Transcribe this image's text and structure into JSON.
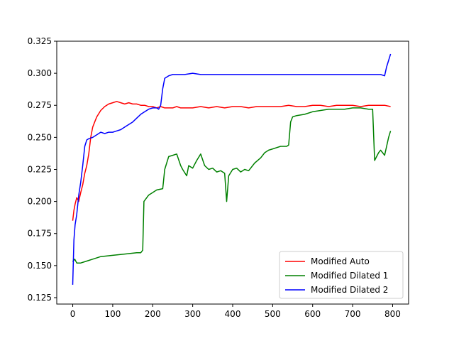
{
  "chart_data": {
    "type": "line",
    "title": "",
    "xlabel": "",
    "ylabel": "",
    "xlim": [
      -40,
      840
    ],
    "ylim": [
      0.12,
      0.325
    ],
    "x_ticks": [
      0,
      100,
      200,
      300,
      400,
      500,
      600,
      700,
      800
    ],
    "y_ticks": [
      0.125,
      0.15,
      0.175,
      0.2,
      0.225,
      0.25,
      0.275,
      0.3,
      0.325
    ],
    "x_tick_labels": [
      "0",
      "100",
      "200",
      "300",
      "400",
      "500",
      "600",
      "700",
      "800"
    ],
    "y_tick_labels": [
      "0.125",
      "0.150",
      "0.175",
      "0.200",
      "0.225",
      "0.250",
      "0.275",
      "0.300",
      "0.325"
    ],
    "grid": false,
    "legend_position": "lower-right",
    "series": [
      {
        "name": "Modified Auto",
        "color": "#ff0000",
        "x": [
          0,
          3,
          6,
          10,
          15,
          20,
          25,
          30,
          35,
          40,
          45,
          50,
          55,
          60,
          70,
          80,
          90,
          100,
          110,
          120,
          130,
          140,
          150,
          160,
          170,
          180,
          190,
          200,
          210,
          220,
          230,
          240,
          250,
          260,
          270,
          280,
          290,
          300,
          320,
          340,
          360,
          380,
          400,
          420,
          440,
          460,
          480,
          500,
          520,
          540,
          560,
          580,
          600,
          620,
          640,
          660,
          680,
          700,
          720,
          740,
          760,
          780,
          795
        ],
        "y": [
          0.185,
          0.193,
          0.198,
          0.203,
          0.2,
          0.207,
          0.213,
          0.222,
          0.228,
          0.237,
          0.25,
          0.258,
          0.262,
          0.266,
          0.271,
          0.274,
          0.276,
          0.277,
          0.278,
          0.277,
          0.276,
          0.277,
          0.276,
          0.276,
          0.275,
          0.275,
          0.274,
          0.274,
          0.273,
          0.274,
          0.273,
          0.273,
          0.273,
          0.274,
          0.273,
          0.273,
          0.273,
          0.273,
          0.274,
          0.273,
          0.274,
          0.273,
          0.274,
          0.274,
          0.273,
          0.274,
          0.274,
          0.274,
          0.274,
          0.275,
          0.274,
          0.274,
          0.275,
          0.275,
          0.274,
          0.275,
          0.275,
          0.275,
          0.274,
          0.275,
          0.275,
          0.275,
          0.274
        ]
      },
      {
        "name": "Modified Dilated 1",
        "color": "#008000",
        "x": [
          0,
          5,
          10,
          20,
          30,
          50,
          70,
          100,
          130,
          160,
          170,
          175,
          178,
          190,
          200,
          210,
          225,
          230,
          240,
          250,
          260,
          270,
          275,
          285,
          290,
          300,
          310,
          320,
          330,
          340,
          350,
          360,
          370,
          380,
          385,
          390,
          400,
          410,
          420,
          430,
          440,
          455,
          470,
          480,
          490,
          500,
          510,
          520,
          535,
          540,
          545,
          550,
          560,
          580,
          600,
          620,
          640,
          660,
          680,
          700,
          720,
          740,
          750,
          755,
          760,
          765,
          770,
          775,
          780,
          785,
          790,
          795
        ],
        "y": [
          0.153,
          0.155,
          0.152,
          0.152,
          0.153,
          0.155,
          0.157,
          0.158,
          0.159,
          0.16,
          0.16,
          0.162,
          0.2,
          0.205,
          0.207,
          0.209,
          0.21,
          0.225,
          0.235,
          0.236,
          0.237,
          0.228,
          0.225,
          0.22,
          0.228,
          0.226,
          0.232,
          0.237,
          0.228,
          0.225,
          0.226,
          0.223,
          0.224,
          0.222,
          0.2,
          0.22,
          0.225,
          0.226,
          0.223,
          0.225,
          0.224,
          0.23,
          0.234,
          0.238,
          0.24,
          0.241,
          0.242,
          0.243,
          0.243,
          0.244,
          0.262,
          0.266,
          0.267,
          0.268,
          0.27,
          0.271,
          0.272,
          0.272,
          0.272,
          0.273,
          0.273,
          0.272,
          0.272,
          0.232,
          0.235,
          0.238,
          0.24,
          0.238,
          0.236,
          0.243,
          0.25,
          0.255
        ]
      },
      {
        "name": "Modified Dilated 2",
        "color": "#0000ff",
        "x": [
          0,
          3,
          6,
          10,
          15,
          20,
          25,
          30,
          35,
          40,
          50,
          60,
          70,
          80,
          90,
          100,
          110,
          120,
          130,
          140,
          150,
          160,
          170,
          180,
          190,
          200,
          210,
          215,
          220,
          225,
          230,
          240,
          250,
          260,
          270,
          280,
          300,
          320,
          340,
          360,
          380,
          400,
          420,
          440,
          460,
          480,
          500,
          520,
          540,
          560,
          580,
          600,
          620,
          640,
          660,
          680,
          700,
          720,
          740,
          760,
          770,
          780,
          785,
          790,
          795
        ],
        "y": [
          0.135,
          0.17,
          0.182,
          0.19,
          0.205,
          0.215,
          0.228,
          0.243,
          0.248,
          0.249,
          0.25,
          0.252,
          0.254,
          0.253,
          0.254,
          0.254,
          0.255,
          0.256,
          0.258,
          0.26,
          0.262,
          0.265,
          0.268,
          0.27,
          0.272,
          0.273,
          0.273,
          0.272,
          0.275,
          0.288,
          0.296,
          0.298,
          0.299,
          0.299,
          0.299,
          0.299,
          0.3,
          0.299,
          0.299,
          0.299,
          0.299,
          0.299,
          0.299,
          0.299,
          0.299,
          0.299,
          0.299,
          0.299,
          0.299,
          0.299,
          0.299,
          0.299,
          0.299,
          0.299,
          0.299,
          0.299,
          0.299,
          0.299,
          0.299,
          0.299,
          0.299,
          0.298,
          0.305,
          0.31,
          0.315
        ]
      }
    ]
  }
}
